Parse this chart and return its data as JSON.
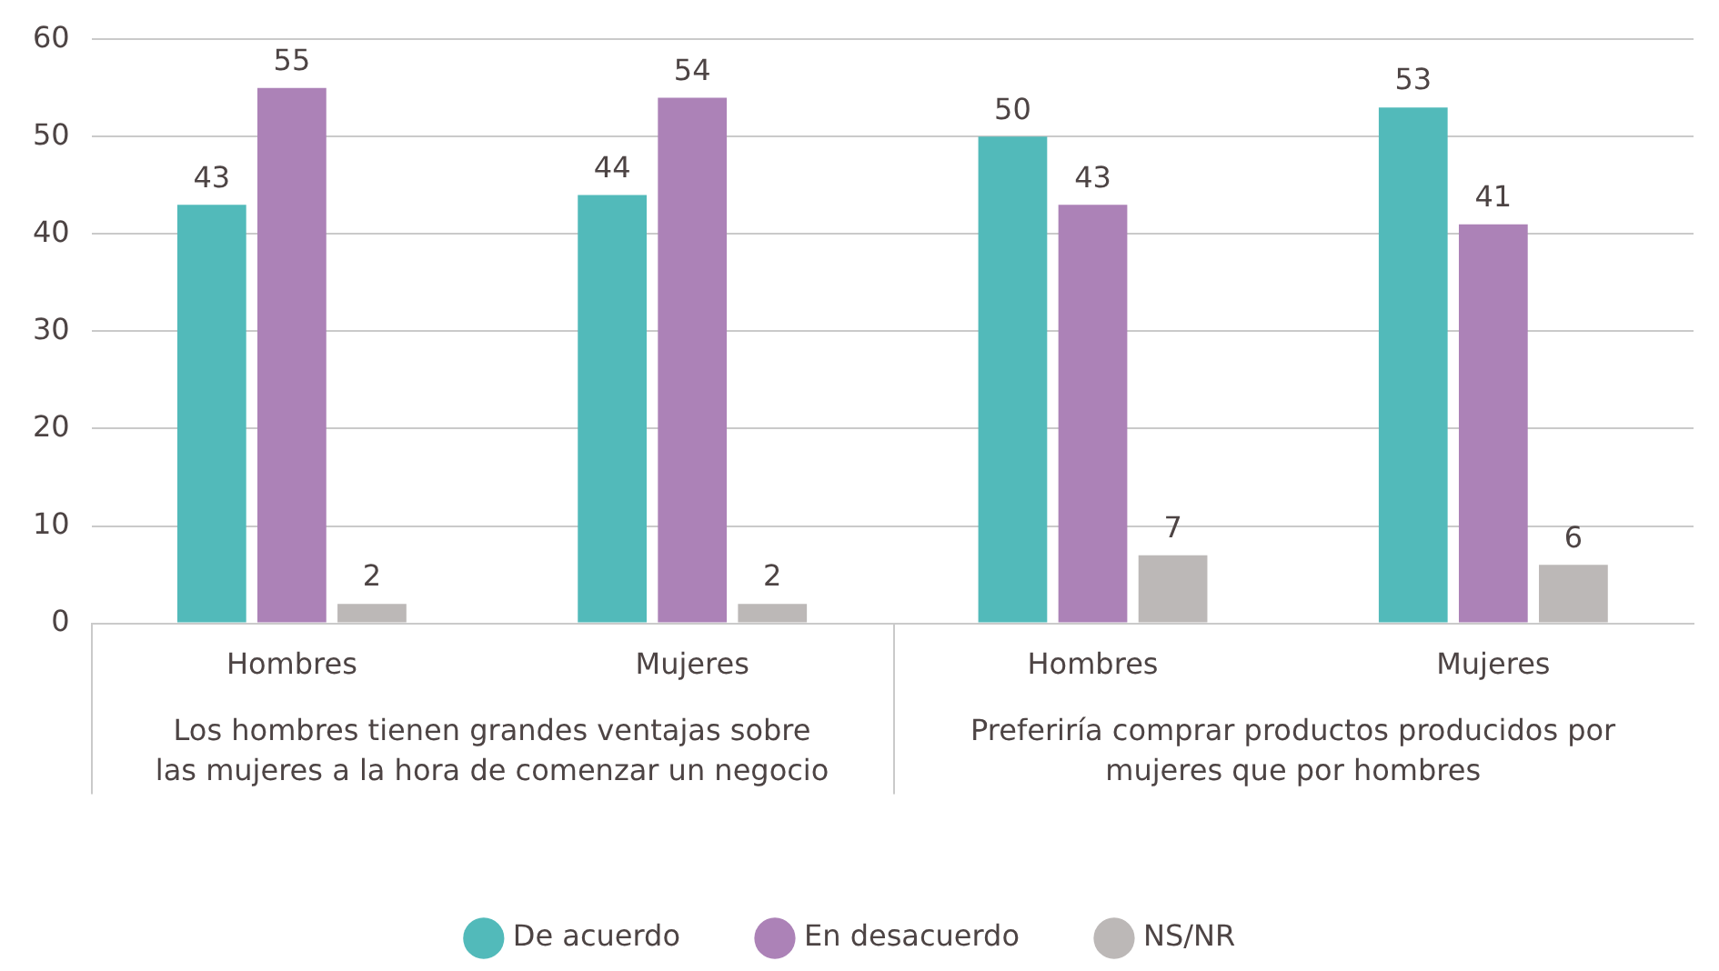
{
  "chart_data": {
    "type": "bar",
    "categories": [
      "Hombres",
      "Mujeres",
      "Hombres",
      "Mujeres"
    ],
    "series": [
      {
        "name": "De acuerdo",
        "color": "#52baba",
        "values": [
          43,
          44,
          50,
          53
        ]
      },
      {
        "name": "En desacuerdo",
        "color": "#ac82b7",
        "values": [
          55,
          54,
          43,
          41
        ]
      },
      {
        "name": "NS/NR",
        "color": "#bcb8b7",
        "values": [
          2,
          2,
          7,
          6
        ]
      }
    ],
    "ylim": [
      0,
      60
    ],
    "yticks": [
      0,
      10,
      20,
      30,
      40,
      50,
      60
    ],
    "grid": "y",
    "legend": "bottom",
    "data_labels": true,
    "annotations": [
      "Los hombres tienen grandes ventajas sobre las mujeres a la hora de comenzar un negocio",
      "Preferiría comprar productos producidos por mujeres que por hombres"
    ]
  }
}
